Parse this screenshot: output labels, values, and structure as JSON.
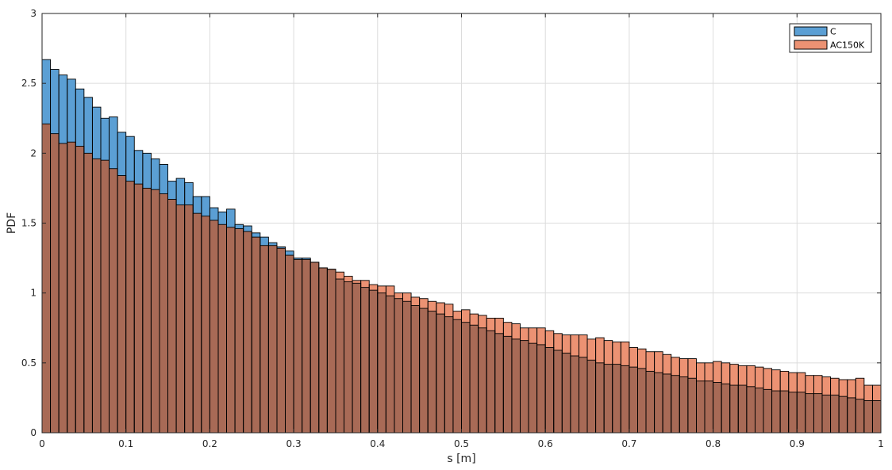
{
  "chart_data": {
    "type": "bar",
    "subtype": "overlaid-histogram",
    "title": "",
    "xlabel": "s [m]",
    "ylabel": "PDF",
    "xlim": [
      0,
      1
    ],
    "ylim": [
      0,
      3
    ],
    "grid": true,
    "legend_position": "top-right",
    "x_ticks": [
      "0",
      "0.1",
      "0.2",
      "0.3",
      "0.4",
      "0.5",
      "0.6",
      "0.7",
      "0.8",
      "0.9",
      "1"
    ],
    "y_ticks": [
      "0",
      "0.5",
      "1",
      "1.5",
      "2",
      "2.5",
      "3"
    ],
    "bin_width": 0.01,
    "series": [
      {
        "name": "C",
        "color": "#5b9fd4",
        "values": [
          2.67,
          2.6,
          2.56,
          2.53,
          2.46,
          2.4,
          2.33,
          2.25,
          2.26,
          2.15,
          2.12,
          2.02,
          2.0,
          1.96,
          1.92,
          1.8,
          1.82,
          1.79,
          1.69,
          1.69,
          1.61,
          1.58,
          1.6,
          1.49,
          1.48,
          1.43,
          1.4,
          1.36,
          1.33,
          1.3,
          1.25,
          1.25,
          1.22,
          1.18,
          1.17,
          1.1,
          1.08,
          1.07,
          1.04,
          1.02,
          1.0,
          0.98,
          0.96,
          0.94,
          0.91,
          0.89,
          0.87,
          0.85,
          0.83,
          0.81,
          0.79,
          0.77,
          0.75,
          0.73,
          0.71,
          0.69,
          0.67,
          0.66,
          0.64,
          0.63,
          0.61,
          0.59,
          0.57,
          0.55,
          0.54,
          0.52,
          0.5,
          0.49,
          0.49,
          0.48,
          0.47,
          0.46,
          0.44,
          0.43,
          0.42,
          0.41,
          0.4,
          0.39,
          0.37,
          0.37,
          0.36,
          0.35,
          0.34,
          0.34,
          0.33,
          0.32,
          0.31,
          0.3,
          0.3,
          0.29,
          0.29,
          0.28,
          0.28,
          0.27,
          0.27,
          0.26,
          0.25,
          0.24,
          0.23,
          0.23
        ]
      },
      {
        "name": "AC150K",
        "color": "#ec9273",
        "values": [
          2.21,
          2.14,
          2.07,
          2.08,
          2.05,
          2.0,
          1.96,
          1.95,
          1.89,
          1.84,
          1.8,
          1.78,
          1.75,
          1.74,
          1.71,
          1.67,
          1.63,
          1.63,
          1.57,
          1.55,
          1.52,
          1.49,
          1.47,
          1.46,
          1.44,
          1.4,
          1.34,
          1.34,
          1.32,
          1.27,
          1.24,
          1.24,
          1.22,
          1.18,
          1.17,
          1.15,
          1.12,
          1.09,
          1.09,
          1.06,
          1.05,
          1.05,
          1.0,
          1.0,
          0.97,
          0.96,
          0.94,
          0.93,
          0.92,
          0.87,
          0.88,
          0.85,
          0.84,
          0.82,
          0.82,
          0.79,
          0.78,
          0.75,
          0.75,
          0.75,
          0.73,
          0.71,
          0.7,
          0.7,
          0.7,
          0.67,
          0.68,
          0.66,
          0.65,
          0.65,
          0.61,
          0.6,
          0.58,
          0.58,
          0.56,
          0.54,
          0.53,
          0.53,
          0.5,
          0.5,
          0.51,
          0.5,
          0.49,
          0.48,
          0.48,
          0.47,
          0.46,
          0.45,
          0.44,
          0.43,
          0.43,
          0.41,
          0.41,
          0.4,
          0.39,
          0.38,
          0.38,
          0.39,
          0.34,
          0.34
        ]
      }
    ]
  }
}
